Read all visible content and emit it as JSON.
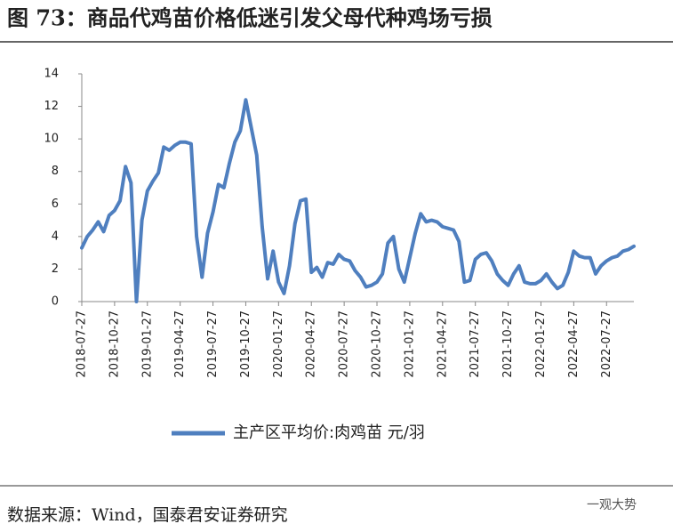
{
  "chart_data": {
    "type": "line",
    "title": "图 73：商品代鸡苗价格低迷引发父母代种鸡场亏损",
    "categories": [
      "2018-07-27",
      null,
      null,
      null,
      null,
      null,
      "2018-10-27",
      null,
      null,
      null,
      null,
      null,
      "2019-01-27",
      null,
      null,
      null,
      null,
      null,
      "2019-04-27",
      null,
      null,
      null,
      null,
      null,
      "2019-07-27",
      null,
      null,
      null,
      null,
      null,
      "2019-10-27",
      null,
      null,
      null,
      null,
      null,
      "2020-01-27",
      null,
      null,
      null,
      null,
      null,
      "2020-04-27",
      null,
      null,
      null,
      null,
      null,
      "2020-07-27",
      null,
      null,
      null,
      null,
      null,
      "2020-10-27",
      null,
      null,
      null,
      null,
      null,
      "2021-01-27",
      null,
      null,
      null,
      null,
      null,
      "2021-04-27",
      null,
      null,
      null,
      null,
      null,
      "2021-07-27",
      null,
      null,
      null,
      null,
      null,
      "2021-10-27",
      null,
      null,
      null,
      null,
      null,
      "2022-01-27",
      null,
      null,
      null,
      null,
      null,
      "2022-04-27",
      null,
      null,
      null,
      null,
      null,
      "2022-07-27",
      null,
      null,
      null,
      null,
      null
    ],
    "series": [
      {
        "name": "主产区平均价:肉鸡苗 元/羽",
        "color": "#4f7fbf",
        "values": [
          3.3,
          4.0,
          4.4,
          4.9,
          4.3,
          5.3,
          5.6,
          6.2,
          8.3,
          7.3,
          0,
          5.0,
          6.8,
          7.4,
          7.9,
          9.5,
          9.3,
          9.6,
          9.8,
          9.8,
          9.7,
          4.0,
          1.5,
          4.2,
          5.5,
          7.2,
          7.0,
          8.5,
          9.8,
          10.5,
          12.4,
          10.7,
          9.0,
          4.6,
          1.4,
          3.1,
          1.2,
          0.5,
          2.2,
          4.8,
          6.2,
          6.3,
          1.8,
          2.1,
          1.5,
          2.4,
          2.3,
          2.9,
          2.6,
          2.5,
          1.9,
          1.5,
          0.9,
          1.0,
          1.2,
          1.7,
          3.6,
          4.0,
          2.0,
          1.2,
          2.7,
          4.2,
          5.4,
          4.9,
          5.0,
          4.9,
          4.6,
          4.5,
          4.4,
          3.7,
          1.2,
          1.3,
          2.6,
          2.9,
          3.0,
          2.5,
          1.7,
          1.3,
          1.0,
          1.7,
          2.2,
          1.2,
          1.1,
          1.1,
          1.3,
          1.7,
          1.2,
          0.8,
          1.0,
          1.8,
          3.1,
          2.8,
          2.7,
          2.7,
          1.7,
          2.2,
          2.5,
          2.7,
          2.8,
          3.1,
          3.2,
          3.4
        ]
      }
    ],
    "ylim": [
      0,
      14
    ],
    "yticks": [
      0,
      2,
      4,
      6,
      8,
      10,
      12,
      14
    ],
    "grid": false,
    "source": "数据来源：Wind，国泰君安证券研究",
    "watermark": "一观大势"
  }
}
